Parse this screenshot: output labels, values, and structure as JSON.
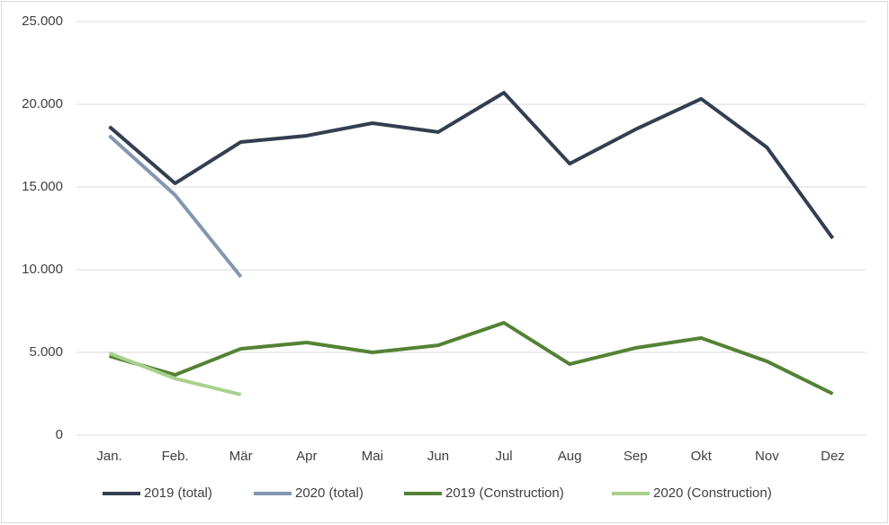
{
  "chart_data": {
    "type": "line",
    "categories": [
      "Jan.",
      "Feb.",
      "Mär",
      "Apr",
      "Mai",
      "Jun",
      "Jul",
      "Aug",
      "Sep",
      "Okt",
      "Nov",
      "Dez"
    ],
    "series": [
      {
        "name": "2019 (total)",
        "color": "#333f50",
        "values": [
          18650,
          15220,
          17720,
          18100,
          18860,
          18320,
          20700,
          16410,
          18480,
          20330,
          17390,
          11900
        ]
      },
      {
        "name": "2020 (total)",
        "color": "#8497b0",
        "values": [
          18100,
          14510,
          9570,
          null,
          null,
          null,
          null,
          null,
          null,
          null,
          null,
          null
        ]
      },
      {
        "name": "2019 (Construction)",
        "color": "#548235",
        "values": [
          4780,
          3640,
          5220,
          5600,
          5000,
          5430,
          6790,
          4290,
          5270,
          5870,
          4460,
          2500
        ]
      },
      {
        "name": "2020 (Construction)",
        "color": "#a9d18e",
        "values": [
          4950,
          3420,
          2450,
          null,
          null,
          null,
          null,
          null,
          null,
          null,
          null,
          null
        ]
      }
    ],
    "ylim": [
      0,
      25000
    ],
    "yticks": [
      0,
      {
        "value": 5000,
        "label": "5.000"
      },
      {
        "value": 10000,
        "label": "10.000"
      },
      {
        "value": 15000,
        "label": "15.000"
      },
      {
        "value": 20000,
        "label": "20.000"
      },
      {
        "value": 25000,
        "label": "25.000"
      }
    ],
    "grid": true,
    "legend": "bottom"
  }
}
